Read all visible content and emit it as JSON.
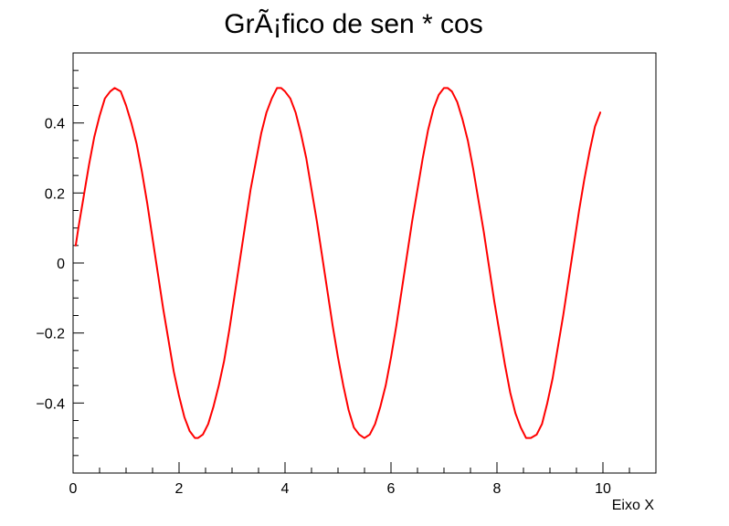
{
  "chart_data": {
    "type": "line",
    "title": "GrÃ¡fico de sen * cos",
    "xlabel": "Eixo X",
    "ylabel": "",
    "xlim": [
      0,
      11
    ],
    "ylim": [
      -0.6,
      0.6
    ],
    "grid": false,
    "x_ticks": [
      {
        "value": 0,
        "label": "0"
      },
      {
        "value": 2,
        "label": "2"
      },
      {
        "value": 4,
        "label": "4"
      },
      {
        "value": 6,
        "label": "6"
      },
      {
        "value": 8,
        "label": "8"
      },
      {
        "value": 10,
        "label": "10"
      }
    ],
    "y_ticks": [
      {
        "value": -0.4,
        "label": "−0.4"
      },
      {
        "value": -0.2,
        "label": "−0.2"
      },
      {
        "value": 0,
        "label": "0"
      },
      {
        "value": 0.2,
        "label": "0.2"
      },
      {
        "value": 0.4,
        "label": "0.4"
      }
    ],
    "series": [
      {
        "color": "#ff0000",
        "x": [
          0.05,
          0.1,
          0.2,
          0.3,
          0.4,
          0.5,
          0.6,
          0.7,
          0.785,
          0.9,
          1.0,
          1.1,
          1.2,
          1.3,
          1.4,
          1.5,
          1.6,
          1.7,
          1.8,
          1.9,
          2.0,
          2.1,
          2.2,
          2.3,
          2.356,
          2.45,
          2.55,
          2.65,
          2.75,
          2.85,
          2.95,
          3.05,
          3.15,
          3.25,
          3.35,
          3.45,
          3.55,
          3.65,
          3.75,
          3.85,
          3.927,
          4.0,
          4.1,
          4.2,
          4.3,
          4.4,
          4.5,
          4.6,
          4.7,
          4.8,
          4.9,
          5.0,
          5.1,
          5.2,
          5.3,
          5.4,
          5.498,
          5.6,
          5.7,
          5.8,
          5.9,
          6.0,
          6.1,
          6.2,
          6.3,
          6.4,
          6.5,
          6.6,
          6.7,
          6.8,
          6.9,
          7.0,
          7.069,
          7.15,
          7.25,
          7.35,
          7.45,
          7.55,
          7.65,
          7.75,
          7.85,
          7.95,
          8.05,
          8.15,
          8.25,
          8.35,
          8.45,
          8.55,
          8.639,
          8.75,
          8.85,
          8.95,
          9.05,
          9.15,
          9.25,
          9.35,
          9.45,
          9.55,
          9.65,
          9.75,
          9.85,
          9.95
        ],
        "y": [
          0.05,
          0.1,
          0.19,
          0.28,
          0.36,
          0.42,
          0.47,
          0.49,
          0.5,
          0.49,
          0.45,
          0.4,
          0.34,
          0.26,
          0.17,
          0.07,
          -0.03,
          -0.13,
          -0.22,
          -0.31,
          -0.38,
          -0.44,
          -0.48,
          -0.5,
          -0.5,
          -0.49,
          -0.46,
          -0.41,
          -0.35,
          -0.28,
          -0.19,
          -0.09,
          0.01,
          0.11,
          0.21,
          0.29,
          0.37,
          0.43,
          0.47,
          0.5,
          0.5,
          0.49,
          0.47,
          0.43,
          0.37,
          0.3,
          0.21,
          0.12,
          0.02,
          -0.08,
          -0.18,
          -0.27,
          -0.35,
          -0.42,
          -0.47,
          -0.49,
          -0.5,
          -0.49,
          -0.46,
          -0.41,
          -0.35,
          -0.27,
          -0.18,
          -0.08,
          0.02,
          0.12,
          0.21,
          0.3,
          0.38,
          0.44,
          0.48,
          0.5,
          0.5,
          0.49,
          0.46,
          0.41,
          0.35,
          0.27,
          0.18,
          0.09,
          -0.01,
          -0.11,
          -0.2,
          -0.29,
          -0.37,
          -0.43,
          -0.47,
          -0.5,
          -0.5,
          -0.49,
          -0.46,
          -0.4,
          -0.33,
          -0.24,
          -0.15,
          -0.05,
          0.05,
          0.15,
          0.24,
          0.32,
          0.39,
          0.43
        ]
      }
    ]
  }
}
